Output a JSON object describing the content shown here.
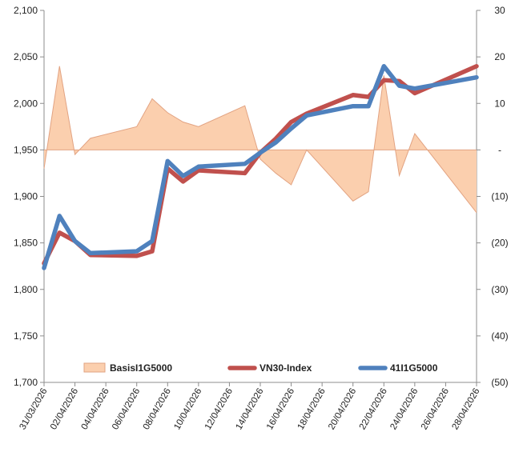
{
  "chart_data": {
    "type": "line",
    "x_type": "date",
    "x_tick_labels": [
      "31/03/2026",
      "02/04/2026",
      "04/04/2026",
      "06/04/2026",
      "08/04/2026",
      "10/04/2026",
      "12/04/2026",
      "14/04/2026",
      "16/04/2026",
      "18/04/2026",
      "20/04/2026",
      "22/04/2026",
      "24/04/2026",
      "26/04/2026",
      "28/04/2026"
    ],
    "x_range": [
      "2026-03-31",
      "2026-04-28"
    ],
    "left_axis": {
      "min": 1700,
      "max": 2100,
      "step": 50,
      "tick_labels": [
        "1,700",
        "1,750",
        "1,800",
        "1,850",
        "1,900",
        "1,950",
        "2,000",
        "2,050",
        "2,100"
      ]
    },
    "right_axis": {
      "min": -50,
      "max": 30,
      "step": 10,
      "tick_labels": [
        "(50)",
        "(40)",
        "(30)",
        "(20)",
        "(10)",
        "-",
        "10",
        "20",
        "30"
      ]
    },
    "grid": false,
    "legend_position": "bottom",
    "series": [
      {
        "name": "BasisI1G5000",
        "kind": "area",
        "axis": "right",
        "color": "#fbcfae",
        "edge_color": "#e2a382",
        "dates": [
          "2026-03-31",
          "2026-04-01",
          "2026-04-02",
          "2026-04-03",
          "2026-04-06",
          "2026-04-07",
          "2026-04-08",
          "2026-04-09",
          "2026-04-10",
          "2026-04-13",
          "2026-04-14",
          "2026-04-15",
          "2026-04-16",
          "2026-04-17",
          "2026-04-20",
          "2026-04-21",
          "2026-04-22",
          "2026-04-23",
          "2026-04-24",
          "2026-04-28"
        ],
        "values": [
          -4,
          18,
          -1,
          2.5,
          5,
          11,
          8,
          6,
          5,
          9.5,
          -2,
          -5,
          -7.5,
          0,
          -11,
          -9,
          16,
          -5.5,
          3.5,
          -13.5
        ]
      },
      {
        "name": "VN30-Index",
        "kind": "line",
        "axis": "left",
        "color": "#c0504d",
        "dates": [
          "2026-03-31",
          "2026-04-01",
          "2026-04-02",
          "2026-04-03",
          "2026-04-06",
          "2026-04-07",
          "2026-04-08",
          "2026-04-09",
          "2026-04-10",
          "2026-04-13",
          "2026-04-14",
          "2026-04-15",
          "2026-04-16",
          "2026-04-17",
          "2026-04-20",
          "2026-04-21",
          "2026-04-22",
          "2026-04-23",
          "2026-04-24",
          "2026-04-28"
        ],
        "values": [
          1828,
          1861,
          1852,
          1837,
          1836,
          1841,
          1930,
          1916,
          1928,
          1925,
          1947,
          1962,
          1980,
          1989,
          2009,
          2007,
          2025,
          2024,
          2011,
          2040
        ]
      },
      {
        "name": "41I1G5000",
        "kind": "line",
        "axis": "left",
        "color": "#4f81bd",
        "dates": [
          "2026-03-31",
          "2026-04-01",
          "2026-04-02",
          "2026-04-03",
          "2026-04-06",
          "2026-04-07",
          "2026-04-08",
          "2026-04-09",
          "2026-04-10",
          "2026-04-13",
          "2026-04-14",
          "2026-04-15",
          "2026-04-16",
          "2026-04-17",
          "2026-04-20",
          "2026-04-21",
          "2026-04-22",
          "2026-04-23",
          "2026-04-24",
          "2026-04-28"
        ],
        "values": [
          1823,
          1879,
          1852,
          1839,
          1841,
          1852,
          1938,
          1922,
          1932,
          1935,
          1947,
          1958,
          1973,
          1987,
          1997,
          1997,
          2040,
          2019,
          2016,
          2028
        ]
      }
    ]
  }
}
